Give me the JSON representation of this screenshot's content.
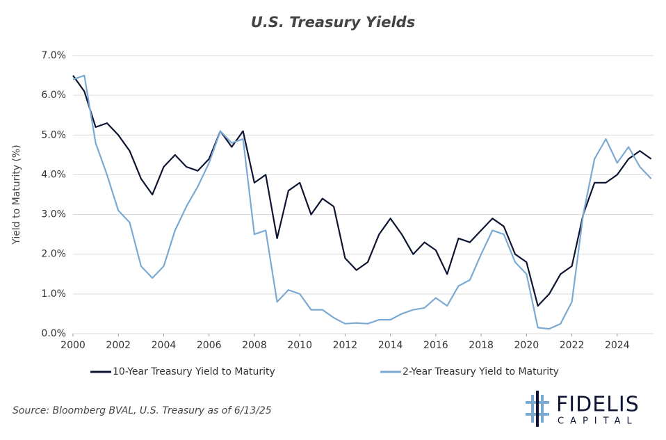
{
  "chart_data": {
    "type": "line",
    "title": "U.S. Treasury Yields",
    "y_label": "Yield to Maturity (%)",
    "source": "Source: Bloomberg BVAL, U.S. Treasury as of 6/13/25",
    "logo": {
      "name": "FIDELIS",
      "sub": "CAPITAL"
    },
    "x": [
      2000,
      2000.5,
      2001,
      2001.5,
      2002,
      2002.5,
      2003,
      2003.5,
      2004,
      2004.5,
      2005,
      2005.5,
      2006,
      2006.5,
      2007,
      2007.5,
      2008,
      2008.5,
      2009,
      2009.5,
      2010,
      2010.5,
      2011,
      2011.5,
      2012,
      2012.5,
      2013,
      2013.5,
      2014,
      2014.5,
      2015,
      2015.5,
      2016,
      2016.5,
      2017,
      2017.5,
      2018,
      2018.5,
      2019,
      2019.5,
      2020,
      2020.5,
      2021,
      2021.5,
      2022,
      2022.5,
      2023,
      2023.5,
      2024,
      2024.5,
      2025,
      2025.5
    ],
    "series": [
      {
        "name": "10-Year Treasury Yield to Maturity",
        "color": "#0d1533",
        "values": [
          6.5,
          6.1,
          5.2,
          5.3,
          5.0,
          4.6,
          3.9,
          3.5,
          4.2,
          4.5,
          4.2,
          4.1,
          4.4,
          5.1,
          4.7,
          5.1,
          3.8,
          4.0,
          2.4,
          3.6,
          3.8,
          3.0,
          3.4,
          3.2,
          1.9,
          1.6,
          1.8,
          2.5,
          2.9,
          2.5,
          2.0,
          2.3,
          2.1,
          1.5,
          2.4,
          2.3,
          2.6,
          2.9,
          2.7,
          2.0,
          1.8,
          0.7,
          1.0,
          1.5,
          1.7,
          3.0,
          3.8,
          3.8,
          4.0,
          4.4,
          4.6,
          4.4
        ]
      },
      {
        "name": "2-Year Treasury Yield to Maturity",
        "color": "#7aaad4",
        "values": [
          6.4,
          6.5,
          4.8,
          4.0,
          3.1,
          2.8,
          1.7,
          1.4,
          1.7,
          2.6,
          3.2,
          3.7,
          4.3,
          5.1,
          4.8,
          4.9,
          2.5,
          2.6,
          0.8,
          1.1,
          1.0,
          0.6,
          0.6,
          0.4,
          0.25,
          0.27,
          0.25,
          0.35,
          0.35,
          0.5,
          0.6,
          0.65,
          0.9,
          0.7,
          1.2,
          1.35,
          2.0,
          2.6,
          2.5,
          1.8,
          1.5,
          0.15,
          0.12,
          0.25,
          0.8,
          3.0,
          4.4,
          4.9,
          4.3,
          4.7,
          4.2,
          3.9
        ]
      }
    ],
    "xlim": [
      2000,
      2025.6
    ],
    "xticks": [
      2000,
      2002,
      2004,
      2006,
      2008,
      2010,
      2012,
      2014,
      2016,
      2018,
      2020,
      2022,
      2024
    ],
    "ylim": [
      0,
      7
    ],
    "yticks": [
      {
        "value": 0,
        "label": "0.0%"
      },
      {
        "value": 1,
        "label": "1.0%"
      },
      {
        "value": 2,
        "label": "2.0%"
      },
      {
        "value": 3,
        "label": "3.0%"
      },
      {
        "value": 4,
        "label": "4.0%"
      },
      {
        "value": 5,
        "label": "5.0%"
      },
      {
        "value": 6,
        "label": "6.0%"
      },
      {
        "value": 7,
        "label": "7.0%"
      }
    ],
    "grid": true,
    "legend": "bottom"
  }
}
